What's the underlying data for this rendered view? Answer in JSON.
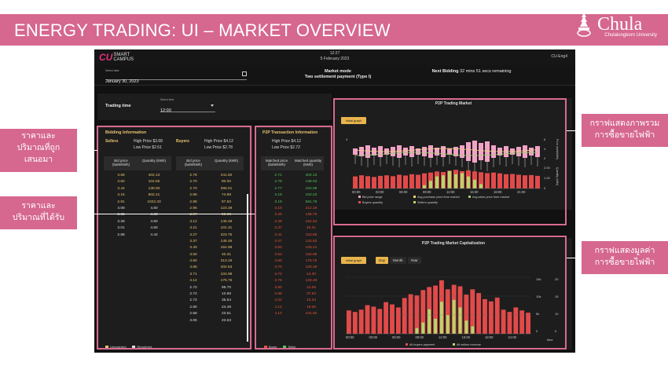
{
  "slide": {
    "title": "ENERGY TRADING: UI – MARKET OVERVIEW",
    "logo": {
      "word": "Chula",
      "subtitle": "Chulalongkorn University"
    },
    "annotations": {
      "offered": [
        "ราคาและ",
        "ปริมาณที่ถูก",
        "เสนอมา"
      ],
      "received": [
        "ราคาและ",
        "ปริมาณที่ได้รับ"
      ],
      "market_graph": [
        "กราฟแสดงภาพรวม",
        "การซื้อขายไฟฟ้า"
      ],
      "cap_graph": [
        "กราฟแสดงมูลค่า",
        "การซื้อขายไฟฟ้า"
      ]
    },
    "colors": {
      "accent": "#d6678e",
      "gold": "#e8c270",
      "green": "#55c35a",
      "red": "#e0533a",
      "pink": "#f2a2c6",
      "lime": "#b5d66b"
    }
  },
  "app": {
    "brand": {
      "cu": "CU",
      "line1": "SMART",
      "line2": "CAMPUS"
    },
    "time": "12:27",
    "date": "5 February 2023",
    "user": "CU-Eng4",
    "date_field": {
      "label": "Select date",
      "value": "January 30, 2023"
    },
    "market_mode": {
      "label": "Market mode",
      "value": "Two settlement payment (Type I)"
    },
    "next_bidding": {
      "label": "Next Bidding",
      "value": "32 mins 51 secs remaining"
    },
    "trading_time": {
      "label": "Trading time",
      "select_label": "Select time",
      "value": "12:00"
    }
  },
  "bidding": {
    "title": "Bidding Information",
    "sellers": {
      "label": "Sellers",
      "high": "High Price  $3.68",
      "low": "Low Price  $2.61"
    },
    "buyers": {
      "label": "Buyers",
      "high": "High Price  $4.12",
      "low": "Low Price  $2.78"
    },
    "col_price": "Bid price (baht/kWh)",
    "col_qty": "Quantity (kWh)",
    "sellers_rows": [
      [
        "3.68",
        "402.13"
      ],
      [
        "3.60",
        "104.55"
      ],
      [
        "3.44",
        "130.00"
      ],
      [
        "3.16",
        "802.21"
      ],
      [
        "2.91",
        "1022.33"
      ],
      [
        "4.08",
        "4.60"
      ],
      [
        "3.65",
        "4.60"
      ],
      [
        "3.28",
        "4.60"
      ],
      [
        "3.01",
        "4.60"
      ],
      [
        "2.88",
        "4.42"
      ]
    ],
    "buyers_rows": [
      [
        "2.78",
        "441.50"
      ],
      [
        "2.70",
        "80.00"
      ],
      [
        "2.70",
        "366.01"
      ],
      [
        "2.88",
        "74.98"
      ],
      [
        "2.88",
        "97.93"
      ],
      [
        "2.95",
        "123.38"
      ],
      [
        "2.97",
        "92.06"
      ],
      [
        "3.12",
        "145.49"
      ],
      [
        "3.21",
        "101.31"
      ],
      [
        "3.27",
        "323.75"
      ],
      [
        "3.37",
        "145.46"
      ],
      [
        "3.40",
        "164.98"
      ],
      [
        "3.50",
        "40.31"
      ],
      [
        "3.60",
        "313.19"
      ],
      [
        "3.66",
        "402.53"
      ],
      [
        "3.71",
        "104.98"
      ],
      [
        "4.12",
        "175.75"
      ],
      [
        "2.72",
        "96.70"
      ],
      [
        "2.72",
        "12.66"
      ],
      [
        "2.72",
        "35.54"
      ],
      [
        "2.80",
        "24.49"
      ],
      [
        "2.58",
        "23.61"
      ],
      [
        "3.05",
        "23.63"
      ]
    ],
    "legend": [
      "Unmatched",
      "Reordered"
    ]
  },
  "p2p": {
    "title": "P2P Transaction Information",
    "high": "High Price  $4.12",
    "low": "Low Price  $2.72",
    "col_price": "Matched price (baht/kWh)",
    "col_qty": "Matched quantity (kWh)",
    "rows": [
      [
        "2.72",
        "402.13"
      ],
      [
        "2.76",
        "138.03"
      ],
      [
        "2.77",
        "104.99"
      ],
      [
        "3.18",
        "102.23"
      ],
      [
        "3.19",
        "561.79"
      ],
      [
        "3.19",
        "212.19"
      ],
      [
        "3.26",
        "138.79"
      ],
      [
        "3.28",
        "154.53"
      ],
      [
        "3.37",
        "40.31"
      ],
      [
        "3.41",
        "153.86"
      ],
      [
        "3.47",
        "132.83"
      ],
      [
        "3.50",
        "105.21"
      ],
      [
        "3.53",
        "184.89"
      ],
      [
        "3.60",
        "175.75"
      ],
      [
        "3.70",
        "105.49"
      ],
      [
        "3.72",
        "14.30"
      ],
      [
        "3.75",
        "133.49"
      ],
      [
        "3.80",
        "12.06"
      ],
      [
        "3.88",
        "37.83"
      ],
      [
        "4.02",
        "15.34"
      ],
      [
        "4.12",
        "19.00"
      ],
      [
        "4.12",
        "441.50"
      ]
    ],
    "legend": [
      "Buyer",
      "Seller"
    ]
  },
  "chart1": {
    "title": "P2P Trading Market",
    "button": "Initial graph",
    "x_ticks": [
      "00:00",
      "03:00",
      "06:00",
      "09:00",
      "12:00",
      "15:00",
      "18:00",
      "21:00"
    ],
    "y_left_top": "4",
    "y_right_upper": [
      "6",
      "4",
      "2"
    ],
    "y_right_lower": [
      "2.00",
      "1.00",
      "0"
    ],
    "right_label_upper": "Price (baht/kWh)",
    "right_label_lower": "Quantity (kWh)",
    "legend": [
      "Bid price range",
      "Buyers quantity",
      "Avg purchase price from market",
      "Sellers quantity",
      "Avg sales price from market"
    ]
  },
  "chart2": {
    "title": "P2P Trading Market Capitalization",
    "button": "Initial graph",
    "tabs": [
      "Day",
      "Month",
      "Year"
    ],
    "active_tab": "Day",
    "x_ticks": [
      "00:00",
      "03:00",
      "06:00",
      "09:00",
      "12:00",
      "15:00",
      "18:00",
      "21:00"
    ],
    "y_left": [
      "15k",
      "10k",
      "5k",
      "0"
    ],
    "y_right": [
      "20",
      "15",
      "10",
      "0"
    ],
    "x_unit": "time",
    "legend": [
      "All buyers payment",
      "All sellers revenue"
    ]
  },
  "chart_data": [
    {
      "type": "bar",
      "title": "P2P Trading Market",
      "series": [
        {
          "name": "Buyers quantity",
          "values": [
            1.1,
            1.2,
            1.12,
            1.05,
            1.15,
            1.2,
            1.12,
            1.25,
            1.18,
            1.3,
            1.25,
            1.38,
            1.45,
            1.55,
            1.5,
            1.62,
            1.7,
            1.58,
            1.65,
            1.55,
            1.48,
            1.4,
            1.45,
            1.38,
            1.3,
            1.32,
            1.25,
            1.2,
            1.22,
            1.15
          ]
        },
        {
          "name": "Sellers quantity",
          "values": [
            0,
            0,
            0,
            0,
            0,
            0,
            0,
            0,
            0,
            0,
            0,
            0.3,
            0.7,
            1.1,
            1.2,
            1.6,
            1.3,
            1.4,
            1.1,
            0.8,
            0.4,
            0,
            0,
            0,
            0,
            0,
            0,
            0,
            0,
            0
          ]
        }
      ],
      "y_right_lower": [
        0,
        2
      ]
    },
    {
      "type": "bar",
      "title": "P2P Trading Market Capitalization",
      "series": [
        {
          "name": "All buyers payment",
          "values": [
            6.2,
            5.8,
            6.4,
            7.6,
            7.2,
            6.6,
            8.4,
            7.8,
            7.0,
            9.5,
            10.5,
            10.2,
            11.6,
            12.4,
            12.8,
            14.2,
            11.8,
            13.0,
            12.6,
            10.4,
            11.8,
            10.8,
            9.2,
            8.6,
            9.6,
            6.4,
            5.8,
            7.0,
            6.2,
            5.6
          ]
        },
        {
          "name": "All sellers revenue",
          "values": [
            0,
            0,
            0,
            0,
            0,
            0,
            0,
            0,
            0,
            0,
            0,
            1.5,
            3.0,
            6.5,
            4.0,
            8.5,
            5.0,
            9.0,
            7.0,
            3.5,
            2.0,
            0,
            0,
            0,
            0,
            0,
            0,
            0,
            0,
            0
          ]
        }
      ],
      "y_range": [
        0,
        15
      ]
    }
  ]
}
